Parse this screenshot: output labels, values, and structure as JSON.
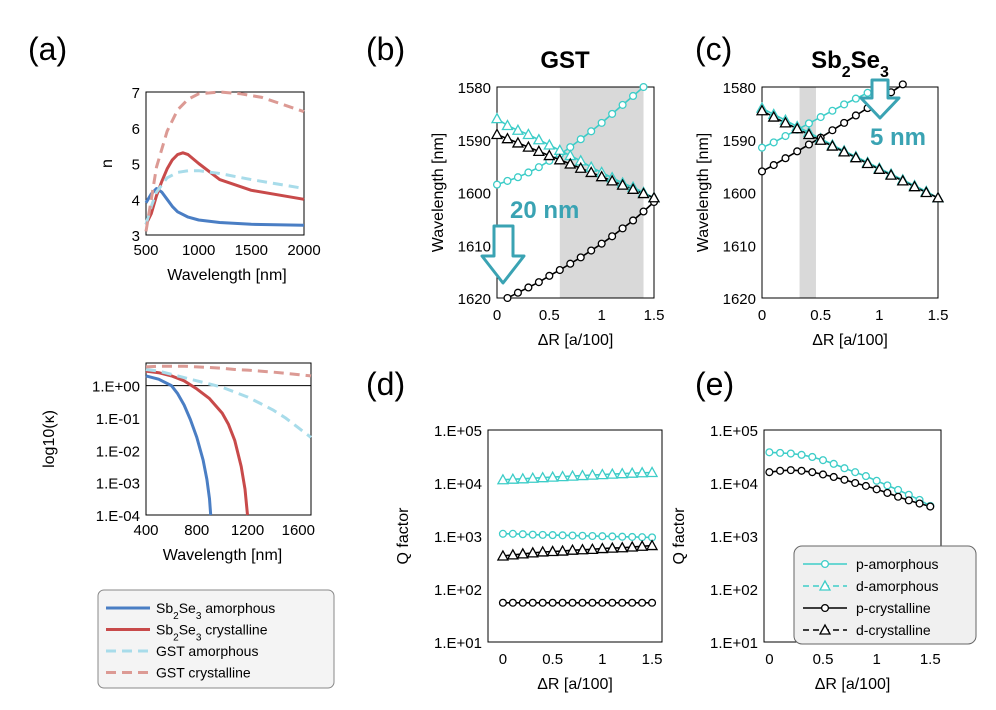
{
  "colors": {
    "sbse_am": "#4a7ec4",
    "sbse_cr": "#c84a4a",
    "gst_am": "#a8dcea",
    "gst_cr": "#dc9a94",
    "cyan": "#3dcdc8",
    "black": "#000000",
    "shade": "#d9d9d9",
    "annot": "#3aa3b3"
  },
  "panel_labels": {
    "a": "(a)",
    "b": "(b)",
    "c": "(c)",
    "d": "(d)",
    "e": "(e)"
  },
  "legend_a": {
    "items": [
      {
        "pre": "Sb",
        "sub1": "2",
        "mid": "Se",
        "sub2": "3",
        "post": " amorphous"
      },
      {
        "pre": "Sb",
        "sub1": "2",
        "mid": "Se",
        "sub2": "3",
        "post": " crystalline"
      },
      {
        "pre": "GST amorphous",
        "sub1": "",
        "mid": "",
        "sub2": "",
        "post": ""
      },
      {
        "pre": "GST crystalline",
        "sub1": "",
        "mid": "",
        "sub2": "",
        "post": ""
      }
    ]
  },
  "legend_e": {
    "items": [
      "p-amorphous",
      "d-amorphous",
      "p-crystalline",
      "d-crystalline"
    ]
  },
  "chart_data": [
    {
      "id": "a-top",
      "type": "line",
      "xlabel": "Wavelength [nm]",
      "ylabel": "n",
      "xlim": [
        500,
        2000
      ],
      "ylim": [
        3,
        7
      ],
      "xticks": [
        "500",
        "1000",
        "1500",
        "2000"
      ],
      "yticks": [
        "3",
        "4",
        "5",
        "6",
        "7"
      ],
      "series": [
        {
          "name": "Sb2Se3 amorphous",
          "x": [
            500,
            550,
            600,
            650,
            700,
            750,
            800,
            900,
            1000,
            1200,
            1500,
            2000
          ],
          "y": [
            3.9,
            4.15,
            4.3,
            4.2,
            4.0,
            3.8,
            3.65,
            3.5,
            3.42,
            3.35,
            3.3,
            3.27
          ]
        },
        {
          "name": "Sb2Se3 crystalline",
          "x": [
            500,
            550,
            600,
            650,
            700,
            750,
            800,
            850,
            900,
            1000,
            1200,
            1500,
            2000
          ],
          "y": [
            3.3,
            3.6,
            4.1,
            4.5,
            4.85,
            5.1,
            5.25,
            5.3,
            5.25,
            5.0,
            4.55,
            4.25,
            4.0
          ]
        },
        {
          "name": "GST amorphous",
          "x": [
            500,
            550,
            600,
            700,
            800,
            900,
            1000,
            1200,
            1500,
            2000
          ],
          "y": [
            3.3,
            3.8,
            4.2,
            4.6,
            4.75,
            4.8,
            4.8,
            4.72,
            4.55,
            4.3
          ]
        },
        {
          "name": "GST crystalline",
          "x": [
            500,
            550,
            600,
            700,
            800,
            900,
            1000,
            1200,
            1400,
            1600,
            1800,
            2000
          ],
          "y": [
            3.1,
            4.0,
            4.9,
            5.9,
            6.5,
            6.8,
            6.95,
            7.0,
            6.95,
            6.85,
            6.65,
            6.45
          ]
        }
      ]
    },
    {
      "id": "a-bottom",
      "type": "line",
      "xlabel": "Wavelength [nm]",
      "ylabel": "log10(κ)",
      "xlim": [
        400,
        1700
      ],
      "ylim": [
        -4,
        0.7
      ],
      "xticks": [
        "400",
        "800",
        "1200",
        "1600"
      ],
      "yticks": [
        "1.E+00",
        "1.E-01",
        "1.E-02",
        "1.E-03",
        "1.E-04"
      ],
      "series": [
        {
          "name": "Sb2Se3 amorphous",
          "x": [
            400,
            500,
            600,
            650,
            700,
            750,
            800,
            850,
            880,
            900,
            910
          ],
          "y": [
            0.3,
            0.2,
            0,
            -0.25,
            -0.6,
            -1.05,
            -1.6,
            -2.3,
            -2.9,
            -3.5,
            -4.0
          ]
        },
        {
          "name": "Sb2Se3 crystalline",
          "x": [
            400,
            500,
            600,
            700,
            800,
            900,
            1000,
            1050,
            1100,
            1150,
            1180,
            1200
          ],
          "y": [
            0.45,
            0.4,
            0.3,
            0.15,
            -0.1,
            -0.4,
            -0.85,
            -1.2,
            -1.7,
            -2.5,
            -3.2,
            -4.0
          ]
        },
        {
          "name": "GST amorphous",
          "x": [
            400,
            500,
            600,
            700,
            800,
            900,
            1000,
            1100,
            1200,
            1300,
            1400,
            1500,
            1600,
            1700
          ],
          "y": [
            0.5,
            0.45,
            0.35,
            0.25,
            0.15,
            0.05,
            -0.05,
            -0.2,
            -0.35,
            -0.55,
            -0.75,
            -1.0,
            -1.3,
            -1.6
          ]
        },
        {
          "name": "GST crystalline",
          "x": [
            400,
            500,
            600,
            700,
            800,
            900,
            1000,
            1100,
            1200,
            1300,
            1400,
            1500,
            1600,
            1700
          ],
          "y": [
            0.58,
            0.6,
            0.6,
            0.6,
            0.58,
            0.56,
            0.54,
            0.5,
            0.48,
            0.45,
            0.42,
            0.38,
            0.34,
            0.3
          ]
        }
      ]
    },
    {
      "id": "b",
      "type": "scatter-line",
      "title": "GST",
      "xlabel": "ΔR [a/100]",
      "ylabel": "Wavelength [nm]",
      "xlim": [
        0,
        1.5
      ],
      "ylim": [
        1580,
        1620
      ],
      "y_inverted": true,
      "xticks": [
        "0",
        "0.5",
        "1",
        "1.5"
      ],
      "yticks": [
        "1580",
        "1590",
        "1600",
        "1610",
        "1620"
      ],
      "shade": [
        0.6,
        1.4
      ],
      "annotation": "20 nm",
      "series": [
        {
          "name": "p-amorphous",
          "marker": "circle",
          "x": [
            0,
            0.1,
            0.2,
            0.3,
            0.4,
            0.5,
            0.6,
            0.7,
            0.8,
            0.9,
            1.0,
            1.1,
            1.2,
            1.3,
            1.4
          ],
          "y": [
            1598.5,
            1597.8,
            1597.1,
            1596.2,
            1595.2,
            1594.0,
            1592.8,
            1591.4,
            1589.9,
            1588.4,
            1586.8,
            1585.1,
            1583.4,
            1581.7,
            1580.0
          ]
        },
        {
          "name": "d-amorphous",
          "marker": "triangle",
          "x": [
            0,
            0.1,
            0.2,
            0.3,
            0.4,
            0.5,
            0.6,
            0.7,
            0.8,
            0.9,
            1.0,
            1.1,
            1.2,
            1.3,
            1.4,
            1.5
          ],
          "y": [
            1586.0,
            1587.3,
            1588.2,
            1589.0,
            1590.0,
            1591.0,
            1592.0,
            1593.0,
            1594.0,
            1595.2,
            1596.2,
            1597.2,
            1598.2,
            1599.0,
            1600.0,
            1601.0
          ]
        },
        {
          "name": "p-crystalline",
          "marker": "circle",
          "x": [
            0.1,
            0.2,
            0.3,
            0.4,
            0.5,
            0.6,
            0.7,
            0.8,
            0.9,
            1.0,
            1.1,
            1.2,
            1.3,
            1.4,
            1.5
          ],
          "y": [
            1620.0,
            1619.0,
            1618.0,
            1617.0,
            1615.8,
            1614.7,
            1613.5,
            1612.3,
            1611.0,
            1609.7,
            1608.3,
            1606.8,
            1605.3,
            1603.6,
            1601.8
          ]
        },
        {
          "name": "d-crystalline",
          "marker": "triangle",
          "x": [
            0,
            0.1,
            0.2,
            0.3,
            0.4,
            0.5,
            0.6,
            0.7,
            0.8,
            0.9,
            1.0,
            1.1,
            1.2,
            1.3,
            1.4,
            1.5
          ],
          "y": [
            1589.0,
            1589.8,
            1590.6,
            1591.4,
            1592.2,
            1593.0,
            1593.8,
            1594.6,
            1595.4,
            1596.2,
            1597.0,
            1597.8,
            1598.6,
            1599.4,
            1600.2,
            1601.0
          ]
        }
      ]
    },
    {
      "id": "c",
      "type": "scatter-line",
      "title": "Sb2Se3",
      "xlabel": "ΔR [a/100]",
      "ylabel": "Wavelength [nm]",
      "xlim": [
        0,
        1.5
      ],
      "ylim": [
        1580,
        1620
      ],
      "y_inverted": true,
      "xticks": [
        "0",
        "0.5",
        "1",
        "1.5"
      ],
      "yticks": [
        "1580",
        "1590",
        "1600",
        "1610",
        "1620"
      ],
      "shade": [
        0.32,
        0.46
      ],
      "annotation": "5 nm",
      "series": [
        {
          "name": "p-amorphous",
          "marker": "circle",
          "x": [
            0,
            0.1,
            0.2,
            0.3,
            0.4,
            0.5,
            0.6,
            0.7,
            0.8,
            0.9,
            1.0
          ],
          "y": [
            1591.5,
            1590.5,
            1589.3,
            1588.1,
            1586.9,
            1585.7,
            1584.5,
            1583.3,
            1582.2,
            1581.1,
            1580.0
          ]
        },
        {
          "name": "d-amorphous",
          "marker": "triangle",
          "x": [
            0,
            0.1,
            0.2,
            0.3,
            0.4,
            0.5,
            0.6,
            0.7,
            0.8,
            0.9,
            1.0,
            1.1,
            1.2,
            1.3,
            1.4,
            1.5
          ],
          "y": [
            1584.0,
            1585.2,
            1586.3,
            1587.5,
            1588.6,
            1589.8,
            1591.0,
            1592.1,
            1593.2,
            1594.3,
            1595.4,
            1596.5,
            1597.6,
            1598.7,
            1599.8,
            1601.0
          ]
        },
        {
          "name": "p-crystalline",
          "marker": "circle",
          "x": [
            0,
            0.1,
            0.2,
            0.3,
            0.4,
            0.5,
            0.6,
            0.7,
            0.8,
            0.9,
            1.0,
            1.1,
            1.2
          ],
          "y": [
            1596.0,
            1594.8,
            1593.5,
            1592.2,
            1590.9,
            1589.6,
            1588.2,
            1586.8,
            1585.4,
            1584.0,
            1582.5,
            1581.0,
            1579.5
          ]
        },
        {
          "name": "d-crystalline",
          "marker": "triangle",
          "x": [
            0,
            0.1,
            0.2,
            0.3,
            0.4,
            0.5,
            0.6,
            0.7,
            0.8,
            0.9,
            1.0,
            1.1,
            1.2,
            1.3,
            1.4,
            1.5
          ],
          "y": [
            1584.5,
            1585.7,
            1586.8,
            1587.9,
            1589.0,
            1590.1,
            1591.2,
            1592.3,
            1593.4,
            1594.5,
            1595.6,
            1596.7,
            1597.8,
            1598.9,
            1600.0,
            1601.0
          ]
        }
      ]
    },
    {
      "id": "d",
      "type": "scatter-line",
      "scale": "log",
      "xlabel": "ΔR [a/100]",
      "ylabel": "Q factor",
      "xlim": [
        -0.15,
        1.6
      ],
      "ylim": [
        10,
        100000
      ],
      "xticks": [
        "0",
        "0.5",
        "1",
        "1.5"
      ],
      "yticks": [
        "1.E+01",
        "1.E+02",
        "1.E+03",
        "1.E+04",
        "1.E+05"
      ],
      "series": [
        {
          "name": "p-amorphous",
          "marker": "circle",
          "x": [
            0,
            0.1,
            0.2,
            0.3,
            0.4,
            0.5,
            0.6,
            0.7,
            0.8,
            0.9,
            1.0,
            1.1,
            1.2,
            1.3,
            1.4,
            1.5
          ],
          "y": [
            1100,
            1100,
            1080,
            1060,
            1050,
            1040,
            1030,
            1020,
            1010,
            1000,
            990,
            980,
            970,
            960,
            950,
            940
          ]
        },
        {
          "name": "d-amorphous",
          "marker": "triangle",
          "x": [
            0,
            0.1,
            0.2,
            0.3,
            0.4,
            0.5,
            0.6,
            0.7,
            0.8,
            0.9,
            1.0,
            1.1,
            1.2,
            1.3,
            1.4,
            1.5
          ],
          "y": [
            11500,
            11800,
            12000,
            12300,
            12600,
            12900,
            13200,
            13500,
            13800,
            14100,
            14400,
            14700,
            15000,
            15300,
            15600,
            15800
          ]
        },
        {
          "name": "p-crystalline",
          "marker": "circle",
          "x": [
            0,
            0.1,
            0.2,
            0.3,
            0.4,
            0.5,
            0.6,
            0.7,
            0.8,
            0.9,
            1.0,
            1.1,
            1.2,
            1.3,
            1.4,
            1.5
          ],
          "y": [
            55,
            55,
            55,
            55,
            55,
            55,
            55,
            55,
            55,
            55,
            55,
            55,
            55,
            55,
            55,
            55
          ]
        },
        {
          "name": "d-crystalline",
          "marker": "triangle",
          "x": [
            0,
            0.1,
            0.2,
            0.3,
            0.4,
            0.5,
            0.6,
            0.7,
            0.8,
            0.9,
            1.0,
            1.1,
            1.2,
            1.3,
            1.4,
            1.5
          ],
          "y": [
            420,
            440,
            460,
            480,
            500,
            510,
            520,
            540,
            550,
            560,
            580,
            590,
            600,
            620,
            640,
            660
          ]
        }
      ]
    },
    {
      "id": "e",
      "type": "scatter-line",
      "scale": "log",
      "xlabel": "ΔR [a/100]",
      "ylabel": "Q factor",
      "xlim": [
        -0.05,
        1.6
      ],
      "ylim": [
        10,
        100000
      ],
      "xticks": [
        "0",
        "0.5",
        "1",
        "1.5"
      ],
      "yticks": [
        "1.E+01",
        "1.E+02",
        "1.E+03",
        "1.E+04",
        "1.E+05"
      ],
      "series": [
        {
          "name": "p-amorphous",
          "marker": "circle",
          "x": [
            0,
            0.1,
            0.2,
            0.3,
            0.4,
            0.5,
            0.6,
            0.7,
            0.8,
            0.9,
            1.0,
            1.1,
            1.2,
            1.3,
            1.4,
            1.5
          ],
          "y": [
            38000,
            37000,
            36000,
            34000,
            31000,
            27000,
            23000,
            19000,
            16000,
            13500,
            11000,
            9000,
            7400,
            6000,
            4800,
            3700
          ]
        },
        {
          "name": "p-crystalline",
          "marker": "circle",
          "x": [
            0,
            0.1,
            0.2,
            0.3,
            0.4,
            0.5,
            0.6,
            0.7,
            0.8,
            0.9,
            1.0,
            1.1,
            1.2,
            1.3,
            1.4,
            1.5
          ],
          "y": [
            16000,
            17000,
            17500,
            17000,
            16000,
            14500,
            13000,
            11500,
            10000,
            8800,
            7600,
            6500,
            5500,
            4700,
            4100,
            3600
          ]
        }
      ]
    }
  ]
}
